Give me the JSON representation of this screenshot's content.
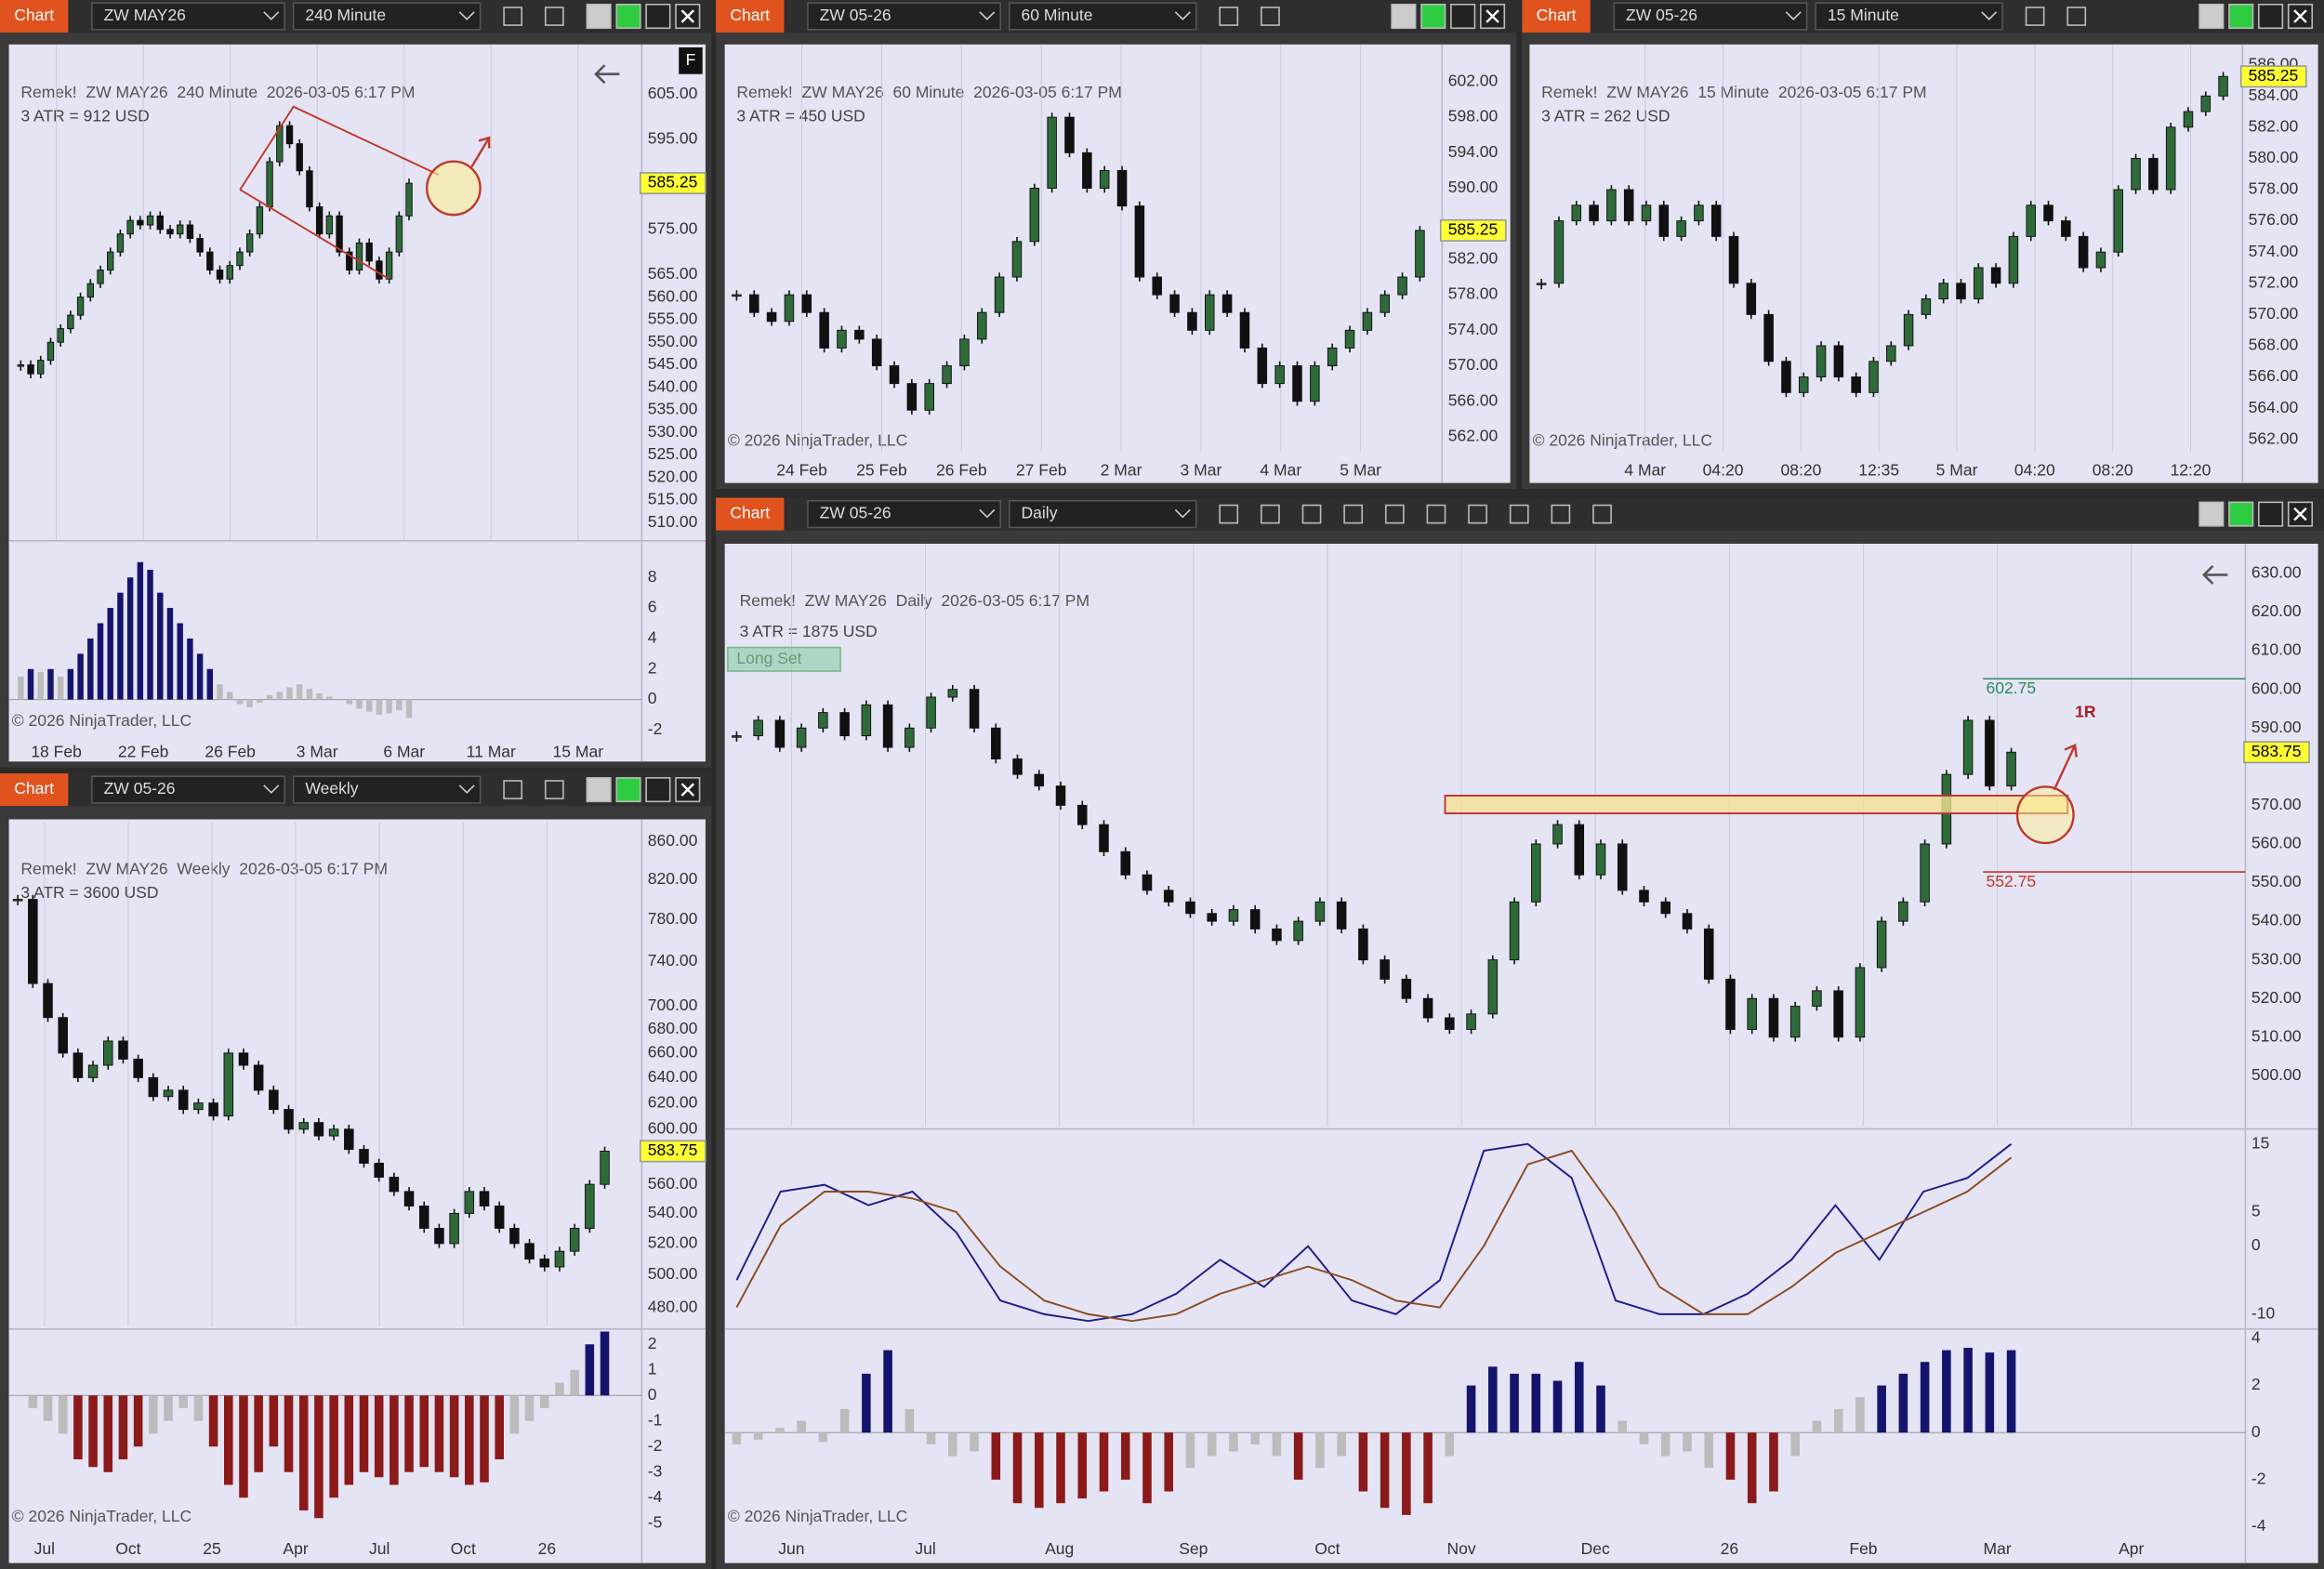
{
  "windows": [
    {
      "label": "Chart",
      "instrument": "ZW MAY26",
      "interval": "240 Minute",
      "badge": "F",
      "header": "Remek!  ZW MAY26  240 Minute  2026-03-05 6:17 PM",
      "atr": "3 ATR = 912 USD",
      "copyright": "© 2026 NinjaTrader, LLC",
      "price_ticks": [
        "605.00",
        "595.00",
        "575.00",
        "565.00",
        "560.00",
        "555.00",
        "550.00",
        "545.00",
        "540.00",
        "535.00",
        "530.00",
        "525.00",
        "520.00",
        "515.00",
        "510.00"
      ],
      "ylim": [
        506,
        616
      ],
      "dates": [
        "18 Feb",
        "22 Feb",
        "26 Feb",
        "3 Mar",
        "6 Mar",
        "11 Mar",
        "15 Mar"
      ],
      "closes": [
        545,
        543,
        546,
        550,
        553,
        556,
        560,
        563,
        566,
        570,
        574,
        577,
        576,
        578,
        575,
        574,
        576,
        573,
        570,
        566,
        564,
        567,
        570,
        574,
        580,
        590,
        598,
        594,
        588,
        580,
        574,
        578,
        570,
        566,
        572,
        568,
        564,
        570,
        578,
        585.25
      ],
      "indicator": {
        "ticks": [
          "8",
          "6",
          "4",
          "2",
          "0",
          "-2"
        ],
        "ylim": [
          -2.7,
          10.4
        ],
        "values": [
          1.5,
          2,
          1.8,
          2,
          1.5,
          2,
          3,
          4,
          5,
          6,
          7,
          8,
          9,
          8.5,
          7,
          6,
          5,
          4,
          3,
          2,
          1,
          0.5,
          -0.3,
          -0.5,
          -0.2,
          0.3,
          0.5,
          0.8,
          1,
          0.7,
          0.4,
          0.2,
          0,
          -0.3,
          -0.6,
          -0.8,
          -1,
          -0.9,
          -0.7,
          -1.2
        ]
      }
    },
    {
      "label": "Chart",
      "instrument": "ZW 05-26",
      "interval": "60 Minute",
      "header": "Remek!  ZW MAY26  60 Minute  2026-03-05 6:17 PM",
      "atr": "3 ATR = 450 USD",
      "copyright": "© 2026 NinjaTrader, LLC",
      "price_ticks": [
        "602.00",
        "598.00",
        "594.00",
        "590.00",
        "582.00",
        "578.00",
        "574.00",
        "570.00",
        "566.00",
        "562.00"
      ],
      "ylim": [
        560.3,
        606.2
      ],
      "dates": [
        "24 Feb",
        "25 Feb",
        "26 Feb",
        "27 Feb",
        "2 Mar",
        "3 Mar",
        "4 Mar",
        "5 Mar"
      ],
      "closes": [
        578,
        576,
        575,
        578,
        576,
        572,
        574,
        573,
        570,
        568,
        565,
        568,
        570,
        573,
        576,
        580,
        584,
        590,
        598,
        594,
        590,
        592,
        588,
        580,
        578,
        576,
        574,
        578,
        576,
        572,
        568,
        570,
        566,
        570,
        572,
        574,
        576,
        578,
        580,
        585.25
      ]
    },
    {
      "label": "Chart",
      "instrument": "ZW 05-26",
      "interval": "15 Minute",
      "header": "Remek!  ZW MAY26  15 Minute  2026-03-05 6:17 PM",
      "atr": "3 ATR = 262 USD",
      "copyright": "© 2026 NinjaTrader, LLC",
      "price_ticks": [
        "586.00",
        "584.00",
        "582.00",
        "580.00",
        "578.00",
        "576.00",
        "574.00",
        "572.00",
        "570.00",
        "568.00",
        "566.00",
        "564.00",
        "562.00"
      ],
      "ylim": [
        561.2,
        587.3
      ],
      "dates": [
        "4 Mar",
        "04:20",
        "08:20",
        "12:35",
        "5 Mar",
        "04:20",
        "08:20",
        "12:20"
      ],
      "closes": [
        572,
        576,
        577,
        576,
        578,
        576,
        577,
        575,
        576,
        577,
        575,
        572,
        570,
        567,
        565,
        566,
        568,
        566,
        565,
        567,
        568,
        570,
        571,
        572,
        571,
        573,
        572,
        575,
        577,
        576,
        575,
        573,
        574,
        578,
        580,
        578,
        582,
        583,
        584,
        585.25
      ]
    },
    {
      "label": "Chart",
      "instrument": "ZW 05-26",
      "interval": "Weekly",
      "header": "Remek!  ZW MAY26  Weekly  2026-03-05 6:17 PM",
      "atr": "3 ATR = 3600 USD",
      "copyright": "© 2026 NinjaTrader, LLC",
      "price_ticks": [
        "860.00",
        "820.00",
        "780.00",
        "740.00",
        "700.00",
        "680.00",
        "660.00",
        "640.00",
        "620.00",
        "600.00",
        "560.00",
        "540.00",
        "520.00",
        "500.00",
        "480.00"
      ],
      "ylim": [
        469,
        881
      ],
      "log": true,
      "dates": [
        "Jul",
        "Oct",
        "25",
        "Apr",
        "Jul",
        "Oct",
        "26"
      ],
      "closes": [
        800,
        720,
        690,
        660,
        640,
        650,
        670,
        655,
        640,
        625,
        630,
        615,
        620,
        610,
        660,
        650,
        630,
        615,
        600,
        605,
        595,
        600,
        585,
        575,
        565,
        555,
        545,
        530,
        520,
        540,
        555,
        545,
        530,
        520,
        510,
        505,
        515,
        530,
        560,
        583.75
      ],
      "indicator": {
        "ticks": [
          "2",
          "1",
          "0",
          "-1",
          "-2",
          "-3",
          "-4",
          "-5"
        ],
        "ylim": [
          -5.4,
          2.6
        ],
        "values": [
          0,
          -0.5,
          -1,
          -1.5,
          -2.5,
          -2.8,
          -3,
          -2.5,
          -2,
          -1.5,
          -1,
          -0.5,
          -1,
          -2,
          -3.5,
          -4,
          -3,
          -2,
          -3,
          -4.5,
          -4.8,
          -4,
          -3.5,
          -3,
          -3.2,
          -3.5,
          -3,
          -2.8,
          -3,
          -3.2,
          -3.5,
          -3.4,
          -2.5,
          -1.5,
          -1,
          -0.5,
          0.5,
          1,
          2,
          2.5
        ]
      }
    },
    {
      "label": "Chart",
      "instrument": "ZW 05-26",
      "interval": "Daily",
      "header": "Remek!  ZW MAY26  Daily  2026-03-05 6:17 PM",
      "atr": "3 ATR = 1875 USD",
      "copyright": "© 2026 NinjaTrader, LLC",
      "setup_label": "Long Set",
      "risk_label": "1R",
      "target": 602.75,
      "stop": 552.75,
      "price_ticks": [
        "630.00",
        "620.00",
        "610.00",
        "600.00",
        "590.00",
        "570.00",
        "560.00",
        "550.00",
        "540.00",
        "530.00",
        "520.00",
        "510.00",
        "500.00"
      ],
      "ylim": [
        487,
        637.7
      ],
      "dates": [
        "Jun",
        "Jul",
        "Aug",
        "Sep",
        "Oct",
        "Nov",
        "Dec",
        "26",
        "Feb",
        "Mar",
        "Apr"
      ],
      "closes": [
        588,
        592,
        585,
        590,
        594,
        588,
        596,
        585,
        590,
        598,
        600,
        590,
        582,
        578,
        575,
        570,
        565,
        558,
        552,
        548,
        545,
        542,
        540,
        543,
        538,
        535,
        540,
        545,
        538,
        530,
        525,
        520,
        515,
        512,
        516,
        530,
        545,
        560,
        565,
        552,
        560,
        548,
        545,
        542,
        538,
        525,
        512,
        520,
        510,
        518,
        522,
        510,
        528,
        540,
        545,
        560,
        578,
        592,
        575,
        583.75
      ],
      "oscillator": {
        "ticks": [
          "15",
          "5",
          "0",
          "-10"
        ],
        "ylim": [
          -11.3,
          17.2
        ],
        "fast": [
          -5,
          8,
          9,
          6,
          8,
          2,
          -8,
          -10,
          -11,
          -10,
          -7,
          -2,
          -6,
          0,
          -8,
          -10,
          -5,
          14,
          15,
          10,
          -8,
          -10,
          -10,
          -7,
          -2,
          6,
          -2,
          8,
          10,
          15
        ],
        "slow": [
          -9,
          3,
          8,
          8,
          7,
          5,
          -3,
          -8,
          -10,
          -11,
          -10,
          -7,
          -5,
          -3,
          -5,
          -8,
          -9,
          0,
          12,
          14,
          5,
          -6,
          -10,
          -10,
          -6,
          -1,
          2,
          5,
          8,
          13
        ]
      },
      "indicator": {
        "ticks": [
          "4",
          "2",
          "0",
          "-2",
          "-4"
        ],
        "ylim": [
          -4.6,
          4.4
        ],
        "values": [
          -0.5,
          -0.3,
          0.2,
          0.5,
          -0.4,
          1,
          2.5,
          3.5,
          1,
          -0.5,
          -1,
          -0.8,
          -2,
          -3,
          -3.2,
          -3,
          -2.8,
          -2.5,
          -2,
          -3,
          -2.5,
          -1.5,
          -1,
          -0.8,
          -0.5,
          -1,
          -2,
          -1.5,
          -1,
          -2.5,
          -3.2,
          -3.5,
          -3,
          -1,
          2,
          2.8,
          2.5,
          2.5,
          2.2,
          3,
          2,
          0.5,
          -0.5,
          -1,
          -0.8,
          -1.5,
          -2,
          -3,
          -2.5,
          -1,
          0.5,
          1,
          1.5,
          2,
          2.5,
          3,
          3.5,
          3.6,
          3.4,
          3.5
        ]
      }
    }
  ]
}
